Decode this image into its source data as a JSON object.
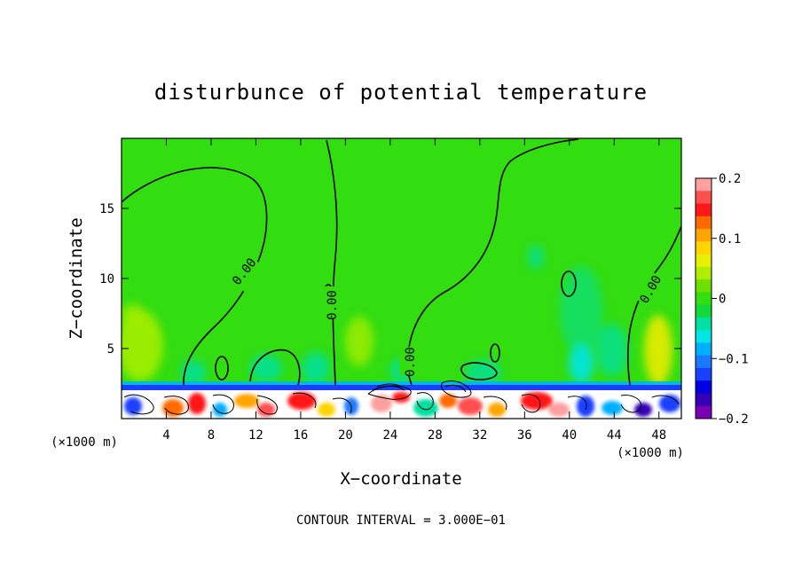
{
  "chart_data": {
    "type": "heatmap",
    "title": "disturbunce of potential temperature",
    "xlabel": "X−coordinate",
    "ylabel": "Z−coordinate",
    "x_unit_left": "(×1000 m)",
    "x_unit_right": "(×1000 m)",
    "xlim": [
      0,
      50
    ],
    "ylim": [
      0,
      20
    ],
    "xticks": [
      4,
      8,
      12,
      16,
      20,
      24,
      28,
      32,
      36,
      40,
      44,
      48
    ],
    "yticks": [
      5,
      10,
      15
    ],
    "colorbar": {
      "range": [
        -0.2,
        0.2
      ],
      "ticks": [
        0.2,
        0.1,
        0,
        -0.1,
        -0.2
      ],
      "tick_labels": [
        "0.2",
        "0.1",
        "0",
        "−0.1",
        "−0.2"
      ],
      "colors": [
        "#ff9f9f",
        "#ff5050",
        "#ff1818",
        "#ff6a00",
        "#ffa500",
        "#ffd400",
        "#e8f000",
        "#b0ee00",
        "#6ee000",
        "#32dd10",
        "#12d83a",
        "#00e0a0",
        "#00e6e6",
        "#00b0ff",
        "#1a7aff",
        "#1a40ff",
        "#0000e0",
        "#3500b5",
        "#7a00b5"
      ]
    },
    "contour_interval_text": "CONTOUR INTERVAL = 3.000E−01",
    "contour_label": "0.00",
    "grid": false
  }
}
